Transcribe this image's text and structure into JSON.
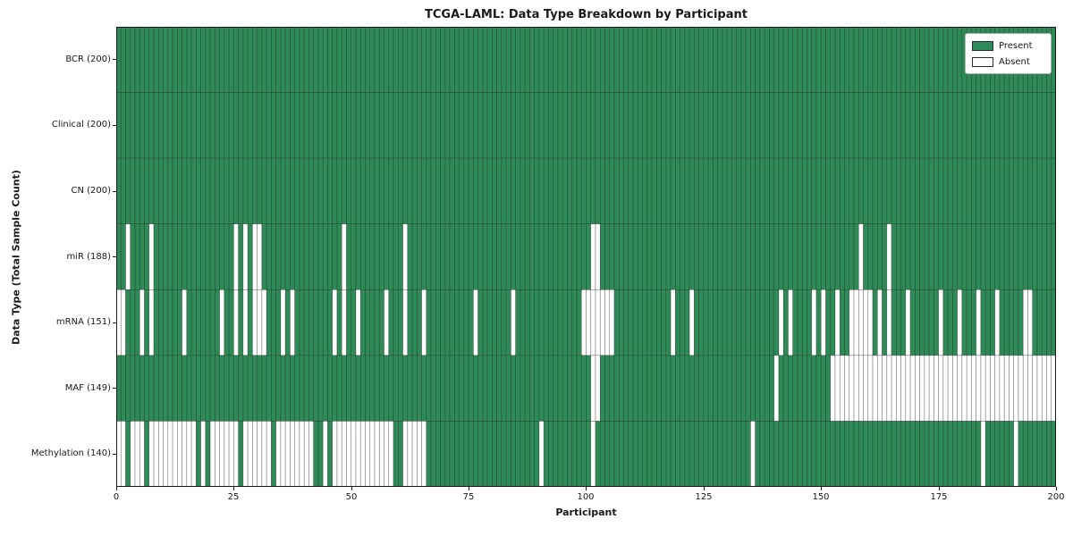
{
  "chart_data": {
    "type": "heatmap",
    "title": "TCGA-LAML: Data Type Breakdown by Participant",
    "xlabel": "Participant",
    "ylabel": "Data Type (Total Sample Count)",
    "x_range": [
      0,
      200
    ],
    "n_participants": 200,
    "x_ticks": [
      0,
      25,
      50,
      75,
      100,
      125,
      150,
      175,
      200
    ],
    "grid": "cell-edges",
    "legend_position": "upper-right",
    "colors": {
      "present": "#2e8b57",
      "absent": "#ffffff",
      "cell_edge": "#1e1e1e",
      "spine": "#1a1a1a"
    },
    "legend": [
      {
        "label": "Present",
        "color": "#2e8b57"
      },
      {
        "label": "Absent",
        "color": "#ffffff"
      }
    ],
    "rows": [
      {
        "label": "BCR (200)",
        "data_type": "BCR",
        "total": 200,
        "absent": []
      },
      {
        "label": "Clinical (200)",
        "data_type": "Clinical",
        "total": 200,
        "absent": []
      },
      {
        "label": "CN (200)",
        "data_type": "CN",
        "total": 200,
        "absent": []
      },
      {
        "label": "miR (188)",
        "data_type": "miR",
        "total": 188,
        "absent": [
          2,
          7,
          25,
          27,
          29,
          30,
          48,
          61,
          101,
          102,
          158,
          164
        ]
      },
      {
        "label": "mRNA (151)",
        "data_type": "mRNA",
        "total": 151,
        "absent": [
          0,
          1,
          5,
          7,
          14,
          22,
          25,
          27,
          29,
          30,
          31,
          35,
          37,
          46,
          48,
          51,
          57,
          61,
          65,
          76,
          84,
          99,
          100,
          101,
          102,
          103,
          104,
          105,
          118,
          122,
          141,
          143,
          148,
          150,
          153,
          156,
          157,
          158,
          159,
          160,
          162,
          164,
          168,
          175,
          179,
          183,
          187,
          193,
          194
        ]
      },
      {
        "label": "MAF (149)",
        "data_type": "MAF",
        "total": 149,
        "absent": [
          101,
          102,
          140,
          152,
          153,
          154,
          155,
          156,
          157,
          158,
          159,
          160,
          161,
          162,
          163,
          164,
          165,
          166,
          167,
          168,
          169,
          170,
          171,
          172,
          173,
          174,
          175,
          176,
          177,
          178,
          179,
          180,
          181,
          182,
          183,
          184,
          185,
          186,
          187,
          188,
          189,
          190,
          191,
          192,
          193,
          194,
          195,
          196,
          197,
          198,
          199
        ]
      },
      {
        "label": "Methylation (140)",
        "data_type": "Methylation",
        "total": 140,
        "absent": [
          0,
          1,
          3,
          4,
          5,
          7,
          8,
          9,
          10,
          11,
          12,
          13,
          14,
          15,
          16,
          18,
          20,
          21,
          22,
          23,
          24,
          25,
          27,
          28,
          29,
          30,
          31,
          32,
          34,
          35,
          36,
          37,
          38,
          39,
          40,
          41,
          44,
          46,
          47,
          48,
          49,
          50,
          51,
          52,
          53,
          54,
          55,
          56,
          57,
          58,
          61,
          62,
          63,
          64,
          65,
          90,
          101,
          135,
          184,
          191
        ]
      }
    ]
  }
}
